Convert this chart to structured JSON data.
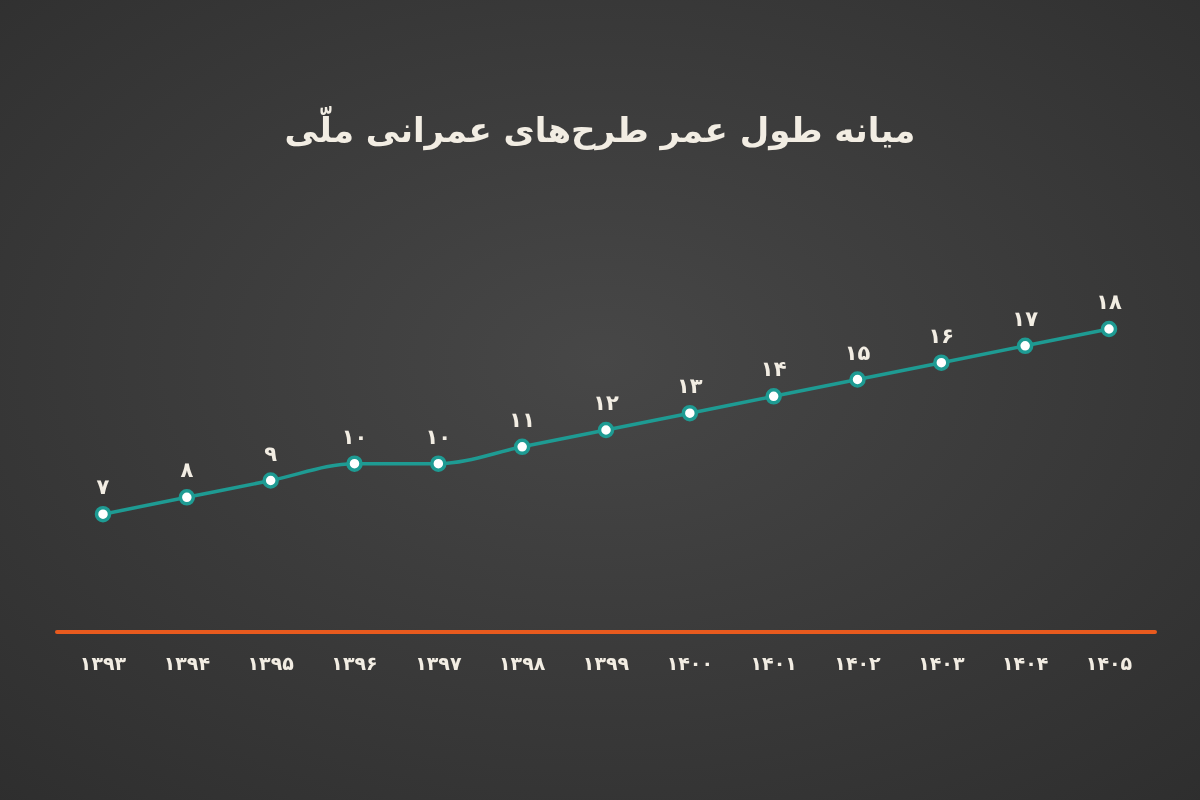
{
  "chart_data": {
    "type": "line",
    "title": "میانه طول عمر طرح‌های عمرانی ملّی",
    "categories": [
      "۱۳۹۳",
      "۱۳۹۴",
      "۱۳۹۵",
      "۱۳۹۶",
      "۱۳۹۷",
      "۱۳۹۸",
      "۱۳۹۹",
      "۱۴۰۰",
      "۱۴۰۱",
      "۱۴۰۲",
      "۱۴۰۳",
      "۱۴۰۴",
      "۱۴۰۵"
    ],
    "values": [
      7,
      8,
      9,
      10,
      10,
      11,
      12,
      13,
      14,
      15,
      16,
      17,
      18
    ],
    "value_labels": [
      "۷",
      "۸",
      "۹",
      "۱۰",
      "۱۰",
      "۱۱",
      "۱۲",
      "۱۳",
      "۱۴",
      "۱۵",
      "۱۶",
      "۱۷",
      "۱۸"
    ],
    "color": "#1e9b93",
    "marker": "circle"
  }
}
